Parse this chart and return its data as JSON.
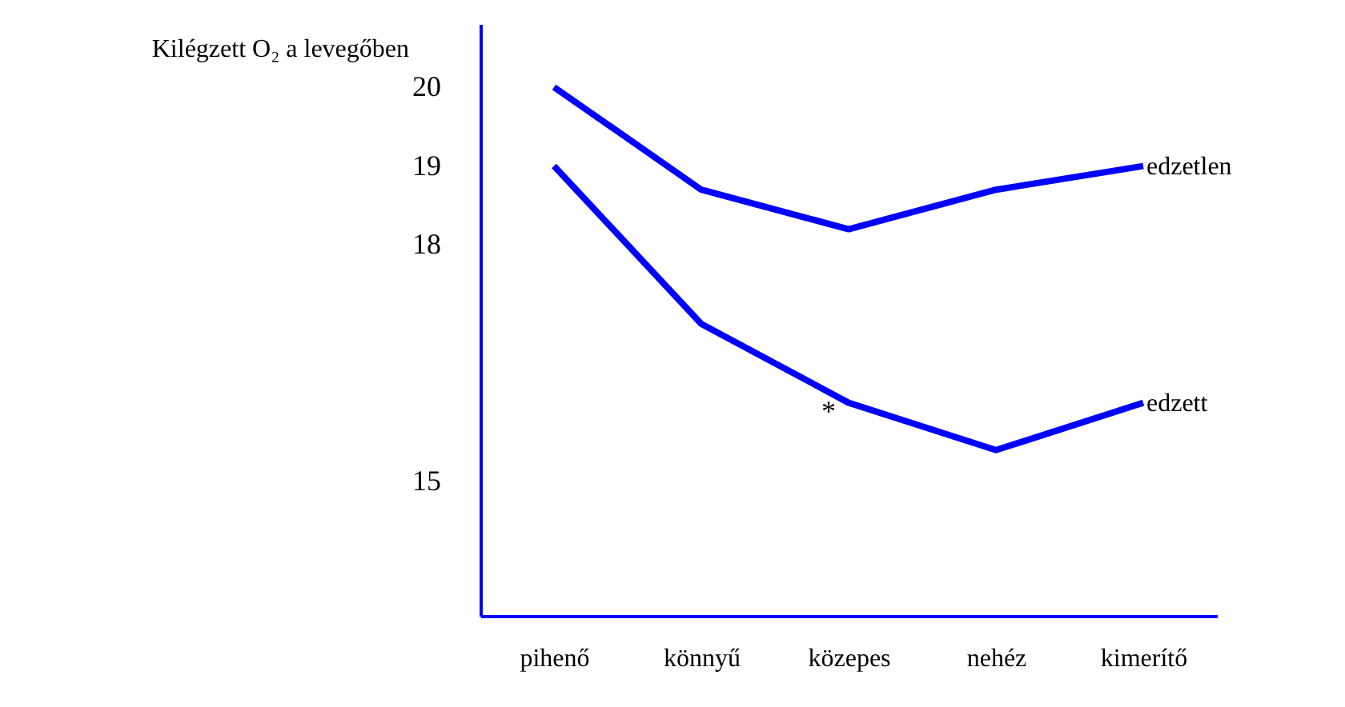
{
  "chart_data": {
    "type": "line",
    "ylabel": "Kilégzett O₂ a levegőben",
    "categories": [
      "pihenő",
      "könnyű",
      "közepes",
      "nehéz",
      "kimerítő"
    ],
    "series": [
      {
        "name": "edzetlen",
        "color": "#0000ff",
        "values": [
          20,
          18.7,
          18.2,
          18.7,
          19
        ]
      },
      {
        "name": "edzett",
        "color": "#0000ff",
        "values": [
          19,
          17,
          16,
          15.4,
          16
        ]
      }
    ],
    "ylim": [
      13.3,
      20.8
    ],
    "yticks": [
      15,
      18,
      19,
      20
    ],
    "grid": false,
    "marker": "none",
    "line_style": "solid",
    "annotations": [
      {
        "text": "*",
        "x": "közepes",
        "y": 16
      }
    ]
  }
}
